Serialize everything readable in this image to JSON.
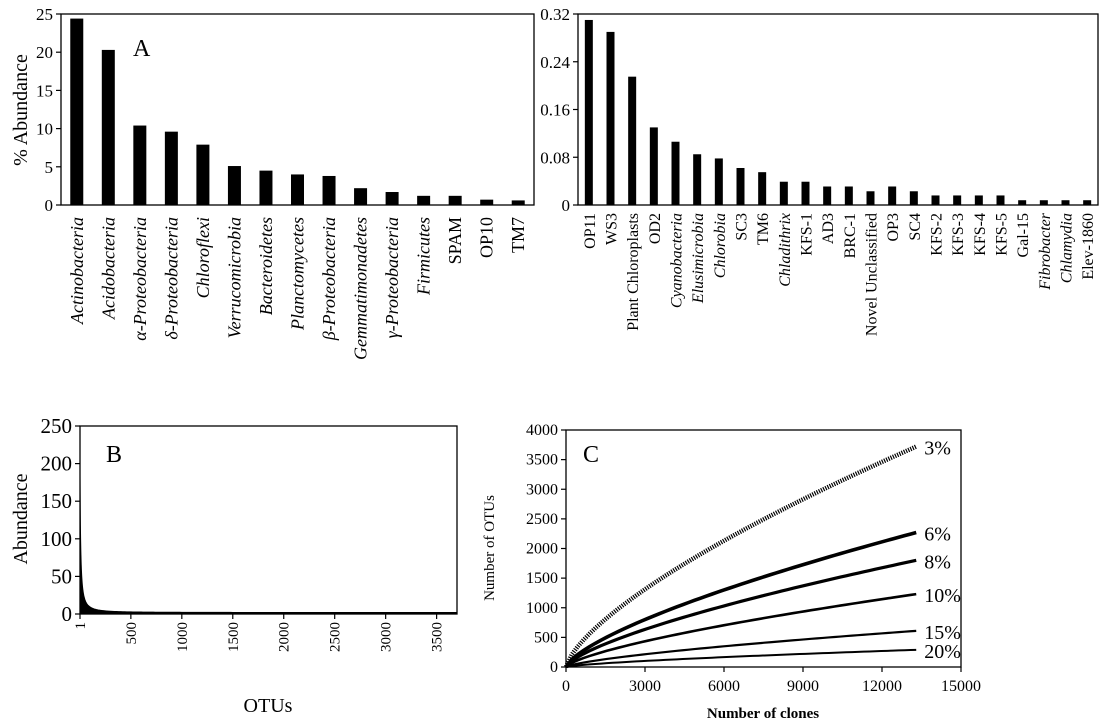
{
  "chart_data": [
    {
      "panel": "A-major",
      "type": "bar",
      "panel_label": "A",
      "ylabel": "% Abundance",
      "ylim": [
        0,
        25
      ],
      "yticks": [
        0,
        5,
        10,
        15,
        20,
        25
      ],
      "categories": [
        {
          "name": "Actinobacteria",
          "italic": true
        },
        {
          "name": "Acidobacteria",
          "italic": true
        },
        {
          "name": "α-Proteobacteria",
          "italic": true
        },
        {
          "name": "δ-Proteobacteria",
          "italic": true
        },
        {
          "name": "Chloroflexi",
          "italic": true
        },
        {
          "name": "Verrucomicrobia",
          "italic": true
        },
        {
          "name": "Bacteroidetes",
          "italic": true
        },
        {
          "name": "Planctomycetes",
          "italic": true
        },
        {
          "name": "β-Proteobacteria",
          "italic": true
        },
        {
          "name": "Gemmatimonadetes",
          "italic": true
        },
        {
          "name": "γ-Proteobacteria",
          "italic": true
        },
        {
          "name": "Firmicutes",
          "italic": true
        },
        {
          "name": "SPAM",
          "italic": false
        },
        {
          "name": "OP10",
          "italic": false
        },
        {
          "name": "TM7",
          "italic": false
        }
      ],
      "values": [
        24.4,
        20.3,
        10.4,
        9.6,
        7.9,
        5.1,
        4.5,
        4.0,
        3.8,
        2.2,
        1.7,
        1.2,
        1.2,
        0.7,
        0.6
      ]
    },
    {
      "panel": "A-minor",
      "type": "bar",
      "ylim": [
        0,
        0.32
      ],
      "yticks": [
        "0",
        "0.08",
        "0.16",
        "0.24",
        "0.32"
      ],
      "categories": [
        {
          "name": "OP11",
          "italic": false
        },
        {
          "name": "WS3",
          "italic": false
        },
        {
          "name": "Plant Chloroplasts",
          "italic": false
        },
        {
          "name": "OD2",
          "italic": false
        },
        {
          "name": "Cyanobacteria",
          "italic": true
        },
        {
          "name": "Elusimicrobia",
          "italic": true
        },
        {
          "name": "Chlorobia",
          "italic": true
        },
        {
          "name": "SC3",
          "italic": false
        },
        {
          "name": "TM6",
          "italic": false
        },
        {
          "name": "Chladithrix",
          "italic": true
        },
        {
          "name": "KFS-1",
          "italic": false
        },
        {
          "name": "AD3",
          "italic": false
        },
        {
          "name": "BRC-1",
          "italic": false
        },
        {
          "name": "Novel Unclassified",
          "italic": false
        },
        {
          "name": "OP3",
          "italic": false
        },
        {
          "name": "SC4",
          "italic": false
        },
        {
          "name": "KFS-2",
          "italic": false
        },
        {
          "name": "KFS-3",
          "italic": false
        },
        {
          "name": "KFS-4",
          "italic": false
        },
        {
          "name": "KFS-5",
          "italic": false
        },
        {
          "name": "Gal-15",
          "italic": false
        },
        {
          "name": "Fibrobacter",
          "italic": true
        },
        {
          "name": "Chlamydia",
          "italic": true
        },
        {
          "name": "Elev-1860",
          "italic": false
        }
      ],
      "values": [
        0.31,
        0.29,
        0.215,
        0.13,
        0.106,
        0.085,
        0.078,
        0.062,
        0.055,
        0.039,
        0.039,
        0.031,
        0.031,
        0.023,
        0.031,
        0.023,
        0.016,
        0.016,
        0.016,
        0.016,
        0.008,
        0.008,
        0.008,
        0.008
      ]
    },
    {
      "panel": "B",
      "type": "area",
      "panel_label": "B",
      "xlabel": "OTUs",
      "ylabel": "Abundance",
      "xlim": [
        1,
        3700
      ],
      "ylim": [
        0,
        250
      ],
      "xticks": [
        "1",
        "500",
        "1000",
        "1500",
        "2000",
        "2500",
        "3000",
        "3500"
      ],
      "yticks": [
        "0",
        "50",
        "100",
        "150",
        "200",
        "250"
      ],
      "rank_abundance": {
        "max": 210,
        "decay_rank": 55,
        "floor": 2
      }
    },
    {
      "panel": "C",
      "type": "line",
      "panel_label": "C",
      "xlabel": "Number of clones",
      "ylabel": "Number of OTUs",
      "xlim": [
        0,
        15000
      ],
      "ylim": [
        0,
        4000
      ],
      "xticks": [
        "0",
        "3000",
        "6000",
        "9000",
        "12000",
        "15000"
      ],
      "yticks": [
        "0",
        "500",
        "1000",
        "1500",
        "2000",
        "2500",
        "3000",
        "3500",
        "4000"
      ],
      "series": [
        {
          "name": "3%",
          "x_end": 13300,
          "y_end": 3720
        },
        {
          "name": "6%",
          "x_end": 13300,
          "y_end": 2270
        },
        {
          "name": "8%",
          "x_end": 13300,
          "y_end": 1800
        },
        {
          "name": "10%",
          "x_end": 13300,
          "y_end": 1230
        },
        {
          "name": "15%",
          "x_end": 13300,
          "y_end": 610
        },
        {
          "name": "20%",
          "x_end": 13300,
          "y_end": 290
        }
      ]
    }
  ]
}
